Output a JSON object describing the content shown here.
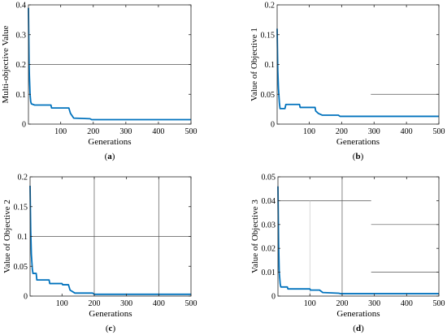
{
  "colors": {
    "line": "#0072bd",
    "axis": "#262626",
    "ref": "#555555"
  },
  "chart_data": [
    {
      "type": "line",
      "caption": "a",
      "xlabel": "Generations",
      "ylabel": "Multi-objective Value",
      "xlim": [
        1,
        500
      ],
      "ylim": [
        0,
        0.4
      ],
      "xticks": [
        "100",
        "200",
        "300",
        "400",
        "500"
      ],
      "yticks": [
        "0",
        "0.1",
        "0.2",
        "0.3",
        "0.4"
      ],
      "xtick_values": [
        100,
        200,
        300,
        400,
        500
      ],
      "ytick_values": [
        0,
        0.1,
        0.2,
        0.3,
        0.4
      ],
      "grid": false,
      "series": [
        {
          "x": [
            1,
            3,
            4,
            5,
            6,
            8,
            10,
            20,
            70,
            72,
            125,
            130,
            140,
            190,
            195,
            500
          ],
          "y": [
            0.39,
            0.2,
            0.16,
            0.13,
            0.1,
            0.075,
            0.068,
            0.064,
            0.064,
            0.054,
            0.054,
            0.036,
            0.02,
            0.018,
            0.015,
            0.015
          ]
        }
      ],
      "ref_lines": [
        {
          "axis": "y",
          "value": 0.2,
          "x_from": 1,
          "x_to": 500
        }
      ]
    },
    {
      "type": "line",
      "caption": "b",
      "xlabel": "Generations",
      "ylabel": "Value of Objective 1",
      "xlim": [
        1,
        500
      ],
      "ylim": [
        0,
        0.2
      ],
      "xticks": [
        "100",
        "200",
        "300",
        "400",
        "500"
      ],
      "yticks": [
        "0",
        "0.05",
        "0.1",
        "0.15",
        "0.2"
      ],
      "xtick_values": [
        100,
        200,
        300,
        400,
        500
      ],
      "ytick_values": [
        0,
        0.05,
        0.1,
        0.15,
        0.2
      ],
      "grid": false,
      "series": [
        {
          "x": [
            1,
            3,
            5,
            8,
            10,
            25,
            28,
            70,
            72,
            118,
            120,
            128,
            140,
            190,
            195,
            500
          ],
          "y": [
            0.16,
            0.09,
            0.06,
            0.035,
            0.026,
            0.026,
            0.033,
            0.033,
            0.028,
            0.028,
            0.022,
            0.018,
            0.015,
            0.015,
            0.013,
            0.013
          ]
        }
      ],
      "ref_lines": [
        {
          "axis": "y",
          "value": 0.05,
          "x_from": 290,
          "x_to": 500
        }
      ]
    },
    {
      "type": "line",
      "caption": "c",
      "xlabel": "Generations",
      "ylabel": "Value of Objective 2",
      "xlim": [
        1,
        500
      ],
      "ylim": [
        0,
        0.2
      ],
      "xticks": [
        "100",
        "200",
        "300",
        "400",
        "500"
      ],
      "yticks": [
        "0",
        "0.05",
        "0.1",
        "0.15",
        "0.2"
      ],
      "xtick_values": [
        100,
        200,
        300,
        400,
        500
      ],
      "ytick_values": [
        0,
        0.05,
        0.1,
        0.15,
        0.2
      ],
      "grid": false,
      "series": [
        {
          "x": [
            1,
            3,
            5,
            8,
            10,
            20,
            22,
            60,
            62,
            100,
            102,
            120,
            125,
            140,
            195,
            200,
            500
          ],
          "y": [
            0.185,
            0.11,
            0.07,
            0.045,
            0.038,
            0.038,
            0.027,
            0.027,
            0.021,
            0.021,
            0.019,
            0.019,
            0.01,
            0.005,
            0.005,
            0.003,
            0.003
          ]
        }
      ],
      "ref_lines": [
        {
          "axis": "y",
          "value": 0.1,
          "x_from": 1,
          "x_to": 500
        },
        {
          "axis": "x",
          "value": 200
        },
        {
          "axis": "x",
          "value": 400
        }
      ]
    },
    {
      "type": "line",
      "caption": "d",
      "xlabel": "Generations",
      "ylabel": "Value of Objective 3",
      "xlim": [
        1,
        500
      ],
      "ylim": [
        0,
        0.05
      ],
      "xticks": [
        "100",
        "200",
        "300",
        "400",
        "500"
      ],
      "yticks": [
        "0",
        "0.01",
        "0.02",
        "0.03",
        "0.04",
        "0.05"
      ],
      "xtick_values": [
        100,
        200,
        300,
        400,
        500
      ],
      "ytick_values": [
        0,
        0.01,
        0.02,
        0.03,
        0.04,
        0.05
      ],
      "grid": false,
      "series": [
        {
          "x": [
            1,
            3,
            5,
            8,
            10,
            30,
            32,
            100,
            102,
            130,
            140,
            190,
            195,
            500
          ],
          "y": [
            0.046,
            0.022,
            0.01,
            0.005,
            0.0038,
            0.0038,
            0.003,
            0.003,
            0.0025,
            0.0025,
            0.0015,
            0.0012,
            0.001,
            0.001
          ]
        }
      ],
      "ref_lines": [
        {
          "axis": "y",
          "value": 0.04,
          "x_from": 1,
          "x_to": 290
        },
        {
          "axis": "x",
          "value": 200,
          "y_from": 0,
          "y_to": 0.05
        },
        {
          "axis": "x",
          "value": 100,
          "y_from": 0,
          "y_to": 0.04,
          "faint": true
        },
        {
          "axis": "y",
          "value": 0.03,
          "x_from": 290,
          "x_to": 500
        },
        {
          "axis": "y",
          "value": 0.01,
          "x_from": 290,
          "x_to": 500
        }
      ]
    }
  ]
}
